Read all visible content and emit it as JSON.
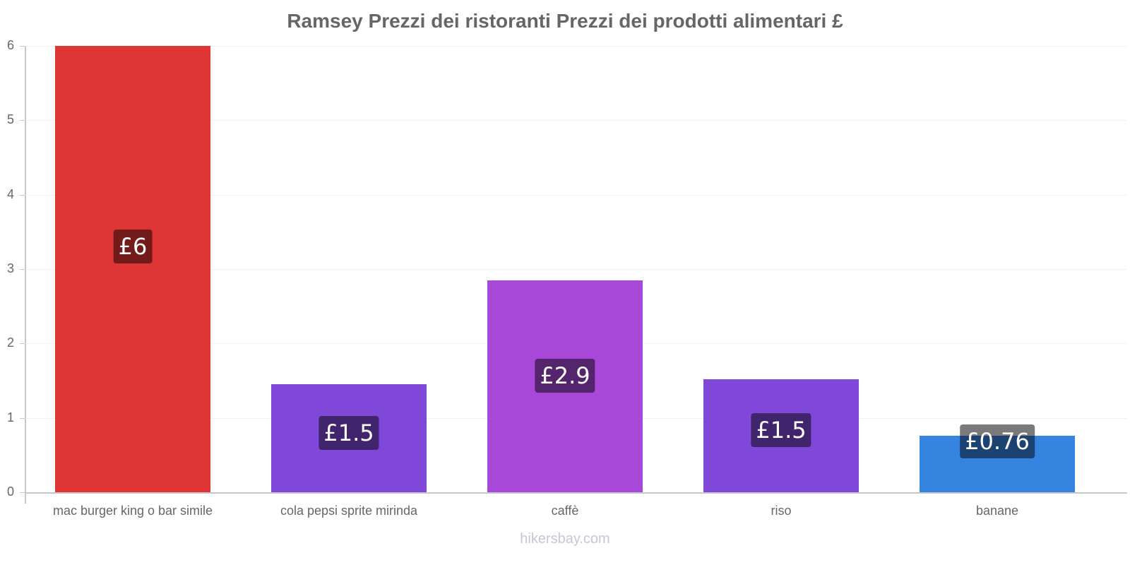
{
  "title": "Ramsey Prezzi dei ristoranti Prezzi dei prodotti alimentari £",
  "watermark": "hikersbay.com",
  "y_ticks": [
    "0",
    "1",
    "2",
    "3",
    "4",
    "5",
    "6"
  ],
  "bars": [
    {
      "label": "mac burger king o bar simile",
      "value_label": "£6",
      "value": 6,
      "color": "#e03535",
      "badge_color": "#731b1b"
    },
    {
      "label": "cola pepsi sprite mirinda",
      "value_label": "£1.5",
      "value": 1.45,
      "color": "#8048d8",
      "badge_color": "#40246c"
    },
    {
      "label": "caffè",
      "value_label": "£2.9",
      "value": 2.85,
      "color": "#a848d8",
      "badge_color": "#54246c"
    },
    {
      "label": "riso",
      "value_label": "£1.5",
      "value": 1.52,
      "color": "#8048d8",
      "badge_color": "#40246c"
    },
    {
      "label": "banane",
      "value_label": "£0.76",
      "value": 0.76,
      "color": "#3584e0",
      "badge_color": "#1b4270"
    }
  ],
  "chart_data": {
    "type": "bar",
    "title": "Ramsey Prezzi dei ristoranti Prezzi dei prodotti alimentari £",
    "categories": [
      "mac burger king o bar simile",
      "cola pepsi sprite mirinda",
      "caffè",
      "riso",
      "banane"
    ],
    "values": [
      6,
      1.45,
      2.85,
      1.52,
      0.76
    ],
    "data_labels": [
      "£6",
      "£1.5",
      "£2.9",
      "£1.5",
      "£0.76"
    ],
    "colors": [
      "#e03535",
      "#8048d8",
      "#a848d8",
      "#8048d8",
      "#3584e0"
    ],
    "xlabel": "",
    "ylabel": "",
    "ylim": [
      0,
      6
    ],
    "yticks": [
      0,
      1,
      2,
      3,
      4,
      5,
      6
    ],
    "grid": true,
    "legend": "none"
  }
}
